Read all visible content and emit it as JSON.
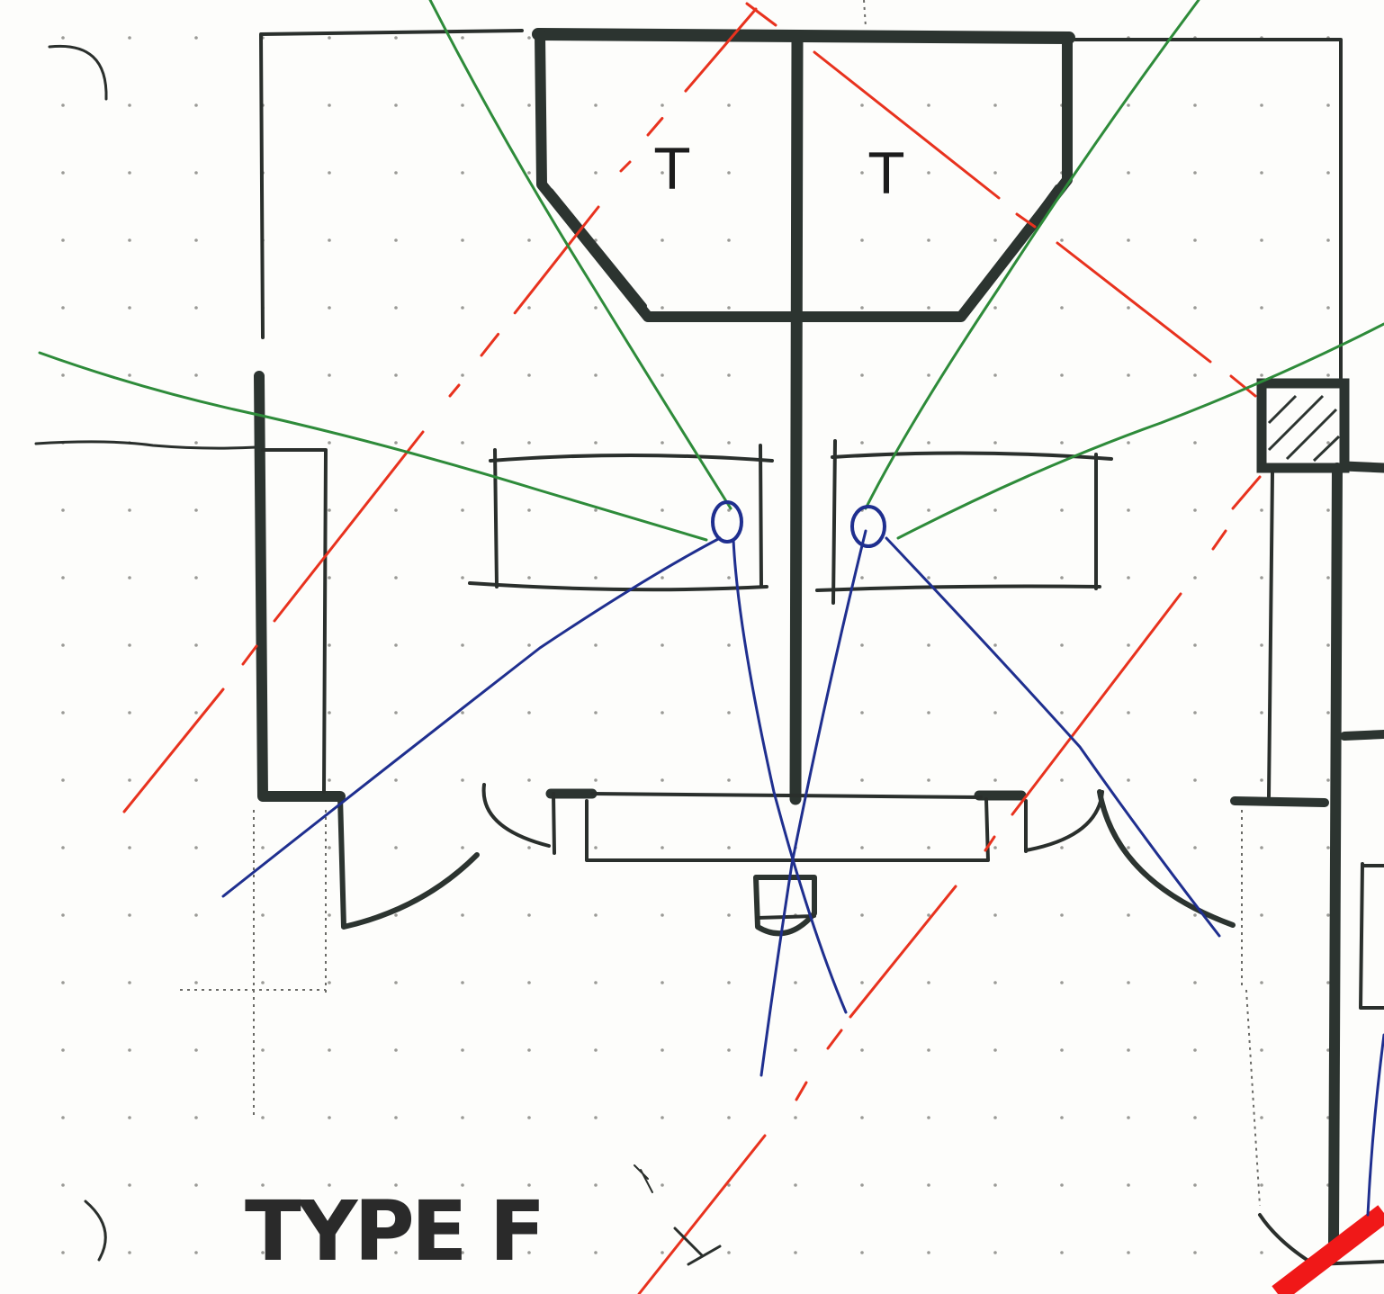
{
  "sheet": {
    "title": "TYPE F",
    "tables": [
      {
        "label": "T"
      },
      {
        "label": "T"
      }
    ]
  },
  "sightlines": {
    "green": "#2e8b3a",
    "blue": "#1f2f8f",
    "red": "#e8321e"
  },
  "paper": {
    "background": "#fdfdfb",
    "dot": "#9a9a96",
    "ink": "#2c3430"
  }
}
